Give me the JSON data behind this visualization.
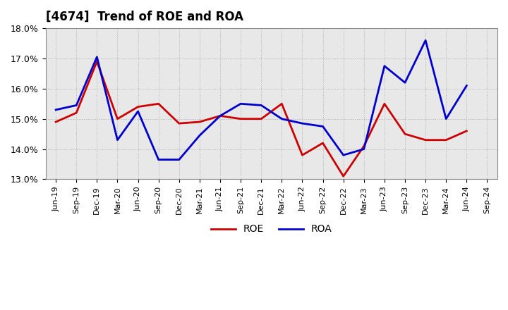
{
  "title": "[4674]  Trend of ROE and ROA",
  "xlabels": [
    "Jun-19",
    "Sep-19",
    "Dec-19",
    "Mar-20",
    "Jun-20",
    "Sep-20",
    "Dec-20",
    "Mar-21",
    "Jun-21",
    "Sep-21",
    "Dec-21",
    "Mar-22",
    "Jun-22",
    "Sep-22",
    "Dec-22",
    "Mar-23",
    "Jun-23",
    "Sep-23",
    "Dec-23",
    "Mar-24",
    "Jun-24",
    "Sep-24"
  ],
  "ROE": [
    14.9,
    15.2,
    16.9,
    15.0,
    15.4,
    15.5,
    14.85,
    14.9,
    15.1,
    15.0,
    15.0,
    15.5,
    13.8,
    14.2,
    13.1,
    14.1,
    15.5,
    14.5,
    14.3,
    14.3,
    14.6,
    null
  ],
  "ROA": [
    15.3,
    15.45,
    17.05,
    14.3,
    15.25,
    13.65,
    13.65,
    14.45,
    15.1,
    15.5,
    15.45,
    15.0,
    14.85,
    14.75,
    13.8,
    14.0,
    16.75,
    16.2,
    17.6,
    15.0,
    16.1,
    null
  ],
  "roe_color": "#cc0000",
  "roa_color": "#0000cc",
  "ylim": [
    13.0,
    18.0
  ],
  "yticks": [
    13.0,
    14.0,
    15.0,
    16.0,
    17.0,
    18.0
  ],
  "bg_color": "#ffffff",
  "plot_bg_color": "#e8e8e8",
  "grid_color": "#aaaaaa",
  "line_width": 2.0,
  "title_fontsize": 12,
  "legend_fontsize": 10
}
